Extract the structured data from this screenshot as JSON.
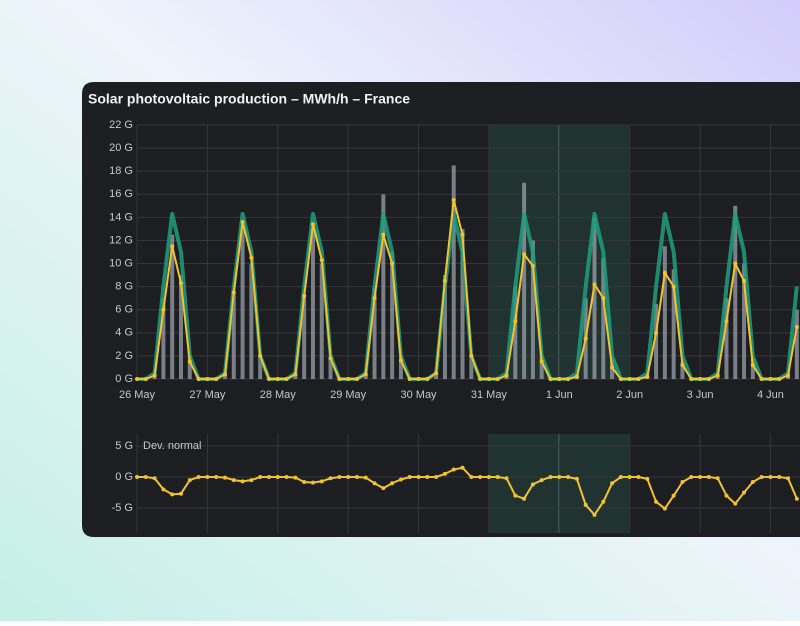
{
  "chart_data": [
    {
      "type": "line",
      "title": "Solar photovoltaic production – MWh/h – France",
      "x": [
        0,
        0.125,
        0.25,
        0.375,
        0.5,
        0.625,
        0.75,
        0.875,
        1,
        1.125,
        1.25,
        1.375,
        1.5,
        1.625,
        1.75,
        1.875,
        2,
        2.125,
        2.25,
        2.375,
        2.5,
        2.625,
        2.75,
        2.875,
        3,
        3.125,
        3.25,
        3.375,
        3.5,
        3.625,
        3.75,
        3.875,
        4,
        4.125,
        4.25,
        4.375,
        4.5,
        4.625,
        4.75,
        4.875,
        5,
        5.125,
        5.25,
        5.375,
        5.5,
        5.625,
        5.75,
        5.875,
        6,
        6.125,
        6.25,
        6.375,
        6.5,
        6.625,
        6.75,
        6.875,
        7,
        7.125,
        7.25,
        7.375,
        7.5,
        7.625,
        7.75,
        7.875,
        8,
        8.125,
        8.25,
        8.375,
        8.5,
        8.625,
        8.75,
        8.875,
        9,
        9.125,
        9.25,
        9.375
      ],
      "xlim": [
        0,
        9.42
      ],
      "xticks": [
        {
          "value": 0,
          "label": "26 May"
        },
        {
          "value": 1,
          "label": "27 May"
        },
        {
          "value": 2,
          "label": "28 May"
        },
        {
          "value": 3,
          "label": "29 May"
        },
        {
          "value": 4,
          "label": "30 May"
        },
        {
          "value": 5,
          "label": "31 May"
        },
        {
          "value": 6,
          "label": "1 Jun"
        },
        {
          "value": 7,
          "label": "2 Jun"
        },
        {
          "value": 8,
          "label": "3 Jun"
        },
        {
          "value": 9,
          "label": "4 Jun"
        }
      ],
      "ylim": [
        0,
        22
      ],
      "yticks": [
        {
          "value": 0,
          "label": "0 G"
        },
        {
          "value": 2,
          "label": "2 G"
        },
        {
          "value": 4,
          "label": "4 G"
        },
        {
          "value": 6,
          "label": "6 G"
        },
        {
          "value": 8,
          "label": "8 G"
        },
        {
          "value": 10,
          "label": "10 G"
        },
        {
          "value": 12,
          "label": "12 G"
        },
        {
          "value": 14,
          "label": "14 G"
        },
        {
          "value": 16,
          "label": "16 G"
        },
        {
          "value": 18,
          "label": "18 G"
        },
        {
          "value": 20,
          "label": "20 G"
        },
        {
          "value": 22,
          "label": "22 G"
        }
      ],
      "grid": true,
      "series": [
        {
          "kind": "bar",
          "color": "#9aa0aa",
          "values": [
            0,
            0,
            0.4,
            7,
            12.5,
            9,
            2,
            0,
            0,
            0,
            0.4,
            7.5,
            13,
            10,
            2,
            0,
            0,
            0,
            0.4,
            7.3,
            13,
            10,
            2,
            0,
            0,
            0,
            0.5,
            8,
            16,
            11,
            2,
            0,
            0,
            0,
            0.5,
            9,
            18.5,
            13,
            2,
            0,
            0,
            0,
            0.5,
            8,
            17,
            12,
            2,
            0,
            0,
            0,
            0.4,
            7,
            14,
            10.5,
            1.8,
            0,
            0,
            0,
            0.4,
            6.5,
            11.5,
            9.5,
            1.5,
            0,
            0,
            0,
            0.4,
            7,
            15,
            10,
            1.8,
            0,
            0,
            0,
            0.4,
            6
          ]
        },
        {
          "kind": "line",
          "color": "#1f9e7c",
          "values": [
            0,
            0,
            0.5,
            8,
            14.3,
            11,
            2,
            0,
            0,
            0,
            0.5,
            8,
            14.3,
            11,
            2,
            0,
            0,
            0,
            0.5,
            8,
            14.3,
            11,
            2,
            0,
            0,
            0,
            0.5,
            8,
            14.3,
            11,
            2,
            0,
            0,
            0,
            0.5,
            8,
            14.3,
            11,
            2,
            0,
            0,
            0,
            0.5,
            8,
            14.3,
            11,
            2,
            0,
            0,
            0,
            0.5,
            8,
            14.3,
            11,
            2,
            0,
            0,
            0,
            0.5,
            8,
            14.3,
            11,
            2,
            0,
            0,
            0,
            0.5,
            8,
            14.3,
            11,
            2,
            0,
            0,
            0,
            0.5,
            8
          ]
        },
        {
          "kind": "line-dots",
          "color": "#f2c230",
          "values": [
            0,
            0,
            0.3,
            6,
            11.5,
            8.3,
            1.5,
            0,
            0,
            0,
            0.4,
            7.5,
            13.6,
            10.5,
            2,
            0,
            0,
            0,
            0.4,
            7.2,
            13.4,
            10.3,
            1.8,
            0,
            0,
            0,
            0.4,
            7,
            12.5,
            10,
            1.6,
            0,
            0,
            0,
            0.5,
            8.5,
            15.5,
            12.5,
            2,
            0,
            0,
            0,
            0.3,
            5,
            10.8,
            9.8,
            1.5,
            0,
            0,
            0,
            0.2,
            3.5,
            8.2,
            7,
            1,
            0,
            0,
            0,
            0.2,
            4,
            9.2,
            8,
            1.2,
            0,
            0,
            0,
            0.3,
            5,
            10,
            8.5,
            1.2,
            0,
            0,
            0,
            0.3,
            4.5
          ]
        }
      ]
    },
    {
      "type": "line",
      "x": [
        0,
        0.125,
        0.25,
        0.375,
        0.5,
        0.625,
        0.75,
        0.875,
        1,
        1.125,
        1.25,
        1.375,
        1.5,
        1.625,
        1.75,
        1.875,
        2,
        2.125,
        2.25,
        2.375,
        2.5,
        2.625,
        2.75,
        2.875,
        3,
        3.125,
        3.25,
        3.375,
        3.5,
        3.625,
        3.75,
        3.875,
        4,
        4.125,
        4.25,
        4.375,
        4.5,
        4.625,
        4.75,
        4.875,
        5,
        5.125,
        5.25,
        5.375,
        5.5,
        5.625,
        5.75,
        5.875,
        6,
        6.125,
        6.25,
        6.375,
        6.5,
        6.625,
        6.75,
        6.875,
        7,
        7.125,
        7.25,
        7.375,
        7.5,
        7.625,
        7.75,
        7.875,
        8,
        8.125,
        8.25,
        8.375,
        8.5,
        8.625,
        8.75,
        8.875,
        9,
        9.125,
        9.25,
        9.375
      ],
      "xlim": [
        0,
        9.42
      ],
      "ylim": [
        -9,
        7
      ],
      "yticks": [
        {
          "value": 5,
          "label": "5 G"
        },
        {
          "value": 0,
          "label": "0 G"
        },
        {
          "value": -5,
          "label": "-5 G"
        }
      ],
      "grid": true,
      "series": [
        {
          "name": "Dev. normal",
          "kind": "line-dots",
          "color": "#f2c230",
          "values": [
            0,
            0,
            -0.2,
            -2,
            -2.8,
            -2.7,
            -0.5,
            0,
            0,
            0,
            -0.1,
            -0.5,
            -0.7,
            -0.5,
            0,
            0,
            0,
            0,
            -0.1,
            -0.8,
            -0.9,
            -0.7,
            -0.2,
            0,
            0,
            0,
            -0.1,
            -1,
            -1.8,
            -1,
            -0.4,
            0,
            0,
            0,
            0,
            0.5,
            1.2,
            1.5,
            0,
            0,
            0,
            0,
            -0.2,
            -3,
            -3.5,
            -1.2,
            -0.5,
            0,
            0,
            0,
            -0.3,
            -4.5,
            -6.1,
            -4,
            -1,
            0,
            0,
            0,
            -0.3,
            -4,
            -5.1,
            -3,
            -0.8,
            0,
            0,
            0,
            -0.2,
            -3,
            -4.3,
            -2.5,
            -0.8,
            0,
            0,
            0,
            -0.2,
            -3.5
          ]
        }
      ]
    }
  ]
}
